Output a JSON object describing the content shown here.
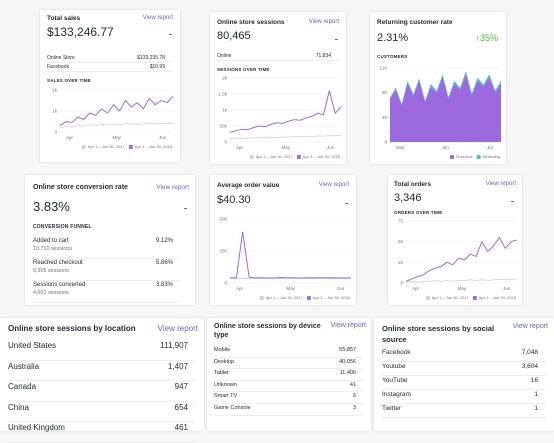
{
  "total_sales": {
    "title": "Total sales",
    "link": "View report",
    "value": "$133,246.77",
    "rows": [
      {
        "label": "Online Store",
        "value": "$133,235.78"
      },
      {
        "label": "Facebook",
        "value": "$10.99"
      }
    ],
    "chart_title": "SALES OVER TIME",
    "chart": {
      "type": "line",
      "xtick_labels": [
        "Apr",
        "May",
        "Jun"
      ],
      "ylim": [
        0,
        2000
      ],
      "yticks": [
        {
          "value": 0,
          "label": "0"
        },
        {
          "value": 1000,
          "label": "1k"
        },
        {
          "value": 2000,
          "label": "2k"
        }
      ],
      "series": [
        {
          "name": "Apr 1 – Jun 30, 2017",
          "color": "#c9cdf5",
          "values": [
            200,
            260,
            230,
            300,
            280,
            340,
            310,
            360,
            330,
            380,
            350,
            400,
            370,
            390,
            360,
            420,
            380,
            410,
            390,
            430
          ]
        },
        {
          "name": "Apr 1 – Jun 30, 2018",
          "color": "#9c6ade",
          "values": [
            300,
            500,
            450,
            700,
            600,
            900,
            800,
            1100,
            900,
            1300,
            1000,
            1500,
            1200,
            1400,
            1100,
            1600,
            1300,
            1500,
            1400,
            1700
          ]
        }
      ]
    }
  },
  "sessions": {
    "title": "Online store sessions",
    "link": "View report",
    "value": "80,465",
    "rows": [
      {
        "label": "Online",
        "value": "71,834"
      }
    ],
    "chart_title": "SESSIONS OVER TIME",
    "chart": {
      "type": "line",
      "xtick_labels": [
        "Apr",
        "May",
        "Jun"
      ],
      "ylim": [
        0,
        2000
      ],
      "yticks": [
        {
          "value": 0,
          "label": "0"
        },
        {
          "value": 500,
          "label": "500"
        },
        {
          "value": 1000,
          "label": "1k"
        },
        {
          "value": 1500,
          "label": "1.5k"
        },
        {
          "value": 2000,
          "label": "2k"
        }
      ],
      "series": [
        {
          "name": "Apr 1 – Jun 30, 2017",
          "color": "#c9cdf5",
          "values": [
            100,
            120,
            110,
            130,
            120,
            140,
            130,
            150,
            140,
            160,
            150,
            170,
            160,
            180,
            170,
            190,
            180,
            200,
            190,
            210
          ]
        },
        {
          "name": "Apr 1 – Jun 30, 2018",
          "color": "#9c6ade",
          "values": [
            300,
            350,
            400,
            380,
            450,
            500,
            480,
            550,
            600,
            580,
            650,
            700,
            680,
            750,
            800,
            900,
            850,
            1600,
            900,
            1100
          ]
        }
      ]
    }
  },
  "returning": {
    "title": "Returning customer rate",
    "value": "2.31%",
    "change": "↑35%",
    "chart_title": "CUSTOMERS",
    "chart": {
      "type": "area",
      "xtick_labels": [
        "May",
        "Jun",
        "Jul"
      ],
      "ylim": [
        0,
        120
      ],
      "yticks": [
        0,
        40,
        80,
        120
      ],
      "series": [
        {
          "name": "First-time",
          "color": "#9c6ade",
          "values": [
            70,
            85,
            60,
            95,
            75,
            100,
            65,
            90,
            80,
            105,
            70,
            95,
            85,
            110,
            75,
            100,
            90,
            105,
            80,
            95
          ]
        },
        {
          "name": "Returning",
          "color": "#47c1bf",
          "values": [
            2,
            3,
            2,
            4,
            3,
            3,
            2,
            4,
            3,
            5,
            3,
            4,
            3,
            5,
            4,
            4,
            3,
            5,
            4,
            4
          ]
        }
      ]
    }
  },
  "conversion": {
    "title": "Online store conversion rate",
    "link": "View report",
    "value": "3.83%",
    "section": "CONVERSION FUNNEL",
    "rows": [
      {
        "label": "Added to cart",
        "sub": "10,710 sessions",
        "value": "9.12%"
      },
      {
        "label": "Reached checkout",
        "sub": "6,905 sessions",
        "value": "5.86%"
      },
      {
        "label": "Sessions converted",
        "sub": "4,501 sessions",
        "value": "3.83%"
      }
    ]
  },
  "aov": {
    "title": "Average order value",
    "link": "View report",
    "value": "$40.30",
    "chart": {
      "type": "line",
      "xtick_labels": [
        "Apr",
        "May",
        "Jun"
      ],
      "ylim": [
        0,
        500
      ],
      "yticks": [
        0,
        250,
        500
      ],
      "series": [
        {
          "name": "Apr 1 – Jun 30, 2017",
          "color": "#c9cdf5",
          "values": [
            35,
            36,
            34,
            37,
            35,
            36,
            34,
            35,
            36,
            35,
            34,
            36,
            35,
            37,
            35,
            36,
            34,
            35,
            36,
            35
          ]
        },
        {
          "name": "Apr 1 – Jun 30, 2018",
          "color": "#9c6ade",
          "values": [
            40,
            42,
            400,
            45,
            40,
            41,
            39,
            40,
            42,
            41,
            40,
            39,
            41,
            40,
            42,
            40,
            41,
            40,
            39,
            40
          ]
        }
      ]
    }
  },
  "orders": {
    "title": "Total orders",
    "link": "View report",
    "value": "3,346",
    "chart_title": "ORDERS OVER TIME",
    "chart": {
      "type": "line",
      "xtick_labels": [
        "Apr",
        "May",
        "Jun"
      ],
      "ylim": [
        0,
        75
      ],
      "yticks": [
        0,
        25,
        50,
        75
      ],
      "series": [
        {
          "name": "Apr 1 – Jun 30, 2017",
          "color": "#c9cdf5",
          "values": [
            1,
            2,
            1,
            2,
            2,
            3,
            2,
            3,
            2,
            3,
            3,
            4,
            3,
            4,
            3,
            4,
            4,
            5,
            4,
            5
          ]
        },
        {
          "name": "Apr 1 – Jun 30, 2018",
          "color": "#9c6ade",
          "values": [
            2,
            5,
            8,
            10,
            15,
            18,
            20,
            25,
            22,
            30,
            28,
            35,
            32,
            50,
            38,
            45,
            55,
            42,
            50,
            52
          ]
        }
      ]
    }
  },
  "location": {
    "title": "Online store sessions by location",
    "link": "View report",
    "rows": [
      {
        "label": "United States",
        "value": "111,907"
      },
      {
        "label": "Australia",
        "value": "1,407"
      },
      {
        "label": "Canada",
        "value": "947"
      },
      {
        "label": "China",
        "value": "654"
      },
      {
        "label": "United Kingdom",
        "value": "461"
      }
    ]
  },
  "device": {
    "title": "Online store sessions by device type",
    "link": "View report",
    "rows": [
      {
        "label": "Mobile",
        "value": "55,857"
      },
      {
        "label": "Desktop",
        "value": "40,056"
      },
      {
        "label": "Tablet",
        "value": "11,406"
      },
      {
        "label": "Unknown",
        "value": "41"
      },
      {
        "label": "Smart TV",
        "value": "6"
      },
      {
        "label": "Game Console",
        "value": "3"
      }
    ]
  },
  "social": {
    "title": "Online store sessions by social source",
    "link": "View report",
    "rows": [
      {
        "label": "Facebook",
        "value": "7,048"
      },
      {
        "label": "Youtube",
        "value": "3,604"
      },
      {
        "label": "YouTube",
        "value": "16"
      },
      {
        "label": "Instagram",
        "value": "1"
      },
      {
        "label": "Twitter",
        "value": "1"
      }
    ]
  }
}
